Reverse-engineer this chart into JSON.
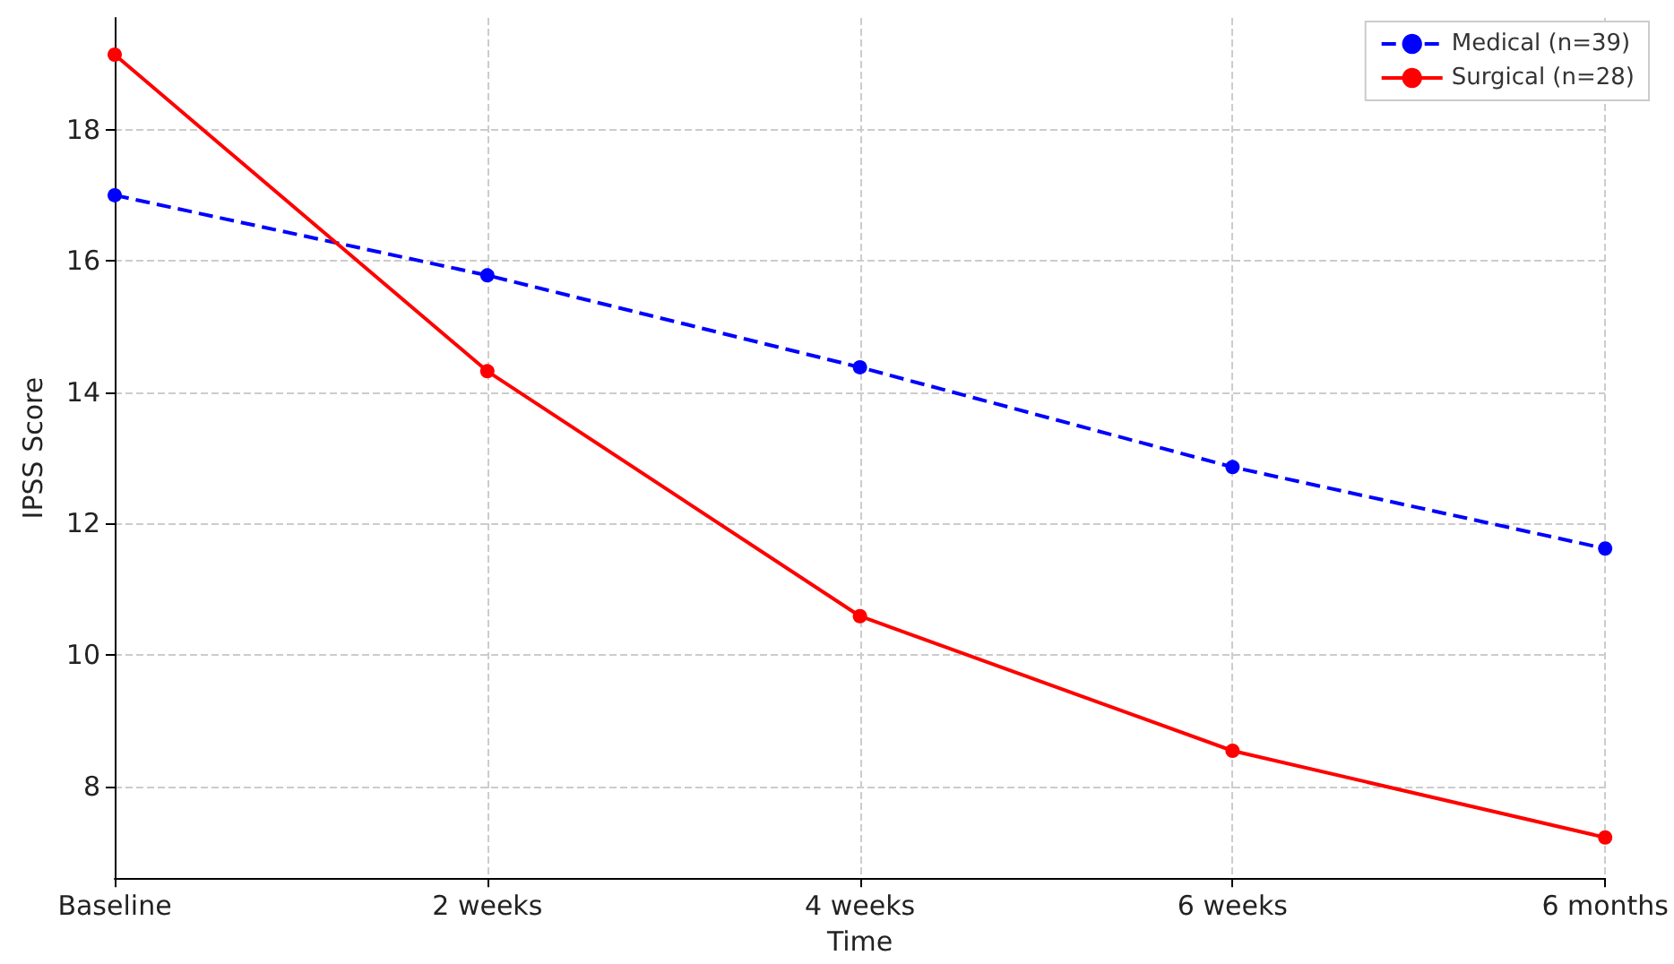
{
  "chart_data": {
    "type": "line",
    "xlabel": "Time",
    "ylabel": "IPSS Score",
    "categories": [
      "Baseline",
      "2 weeks",
      "4 weeks",
      "6 weeks",
      "6 months"
    ],
    "series": [
      {
        "name": "Medical (n=39)",
        "color": "#0000ff",
        "line_style": "dashed",
        "values": [
          17.0,
          15.78,
          14.38,
          12.86,
          11.62
        ]
      },
      {
        "name": "Surgical (n=28)",
        "color": "#ff0000",
        "line_style": "solid",
        "values": [
          19.14,
          14.32,
          10.59,
          8.54,
          7.22
        ]
      }
    ],
    "ylim": [
      6.6,
      19.7
    ],
    "yticks": [
      8,
      10,
      12,
      14,
      16,
      18
    ],
    "grid": true,
    "legend": "top right",
    "marker": "circle"
  }
}
